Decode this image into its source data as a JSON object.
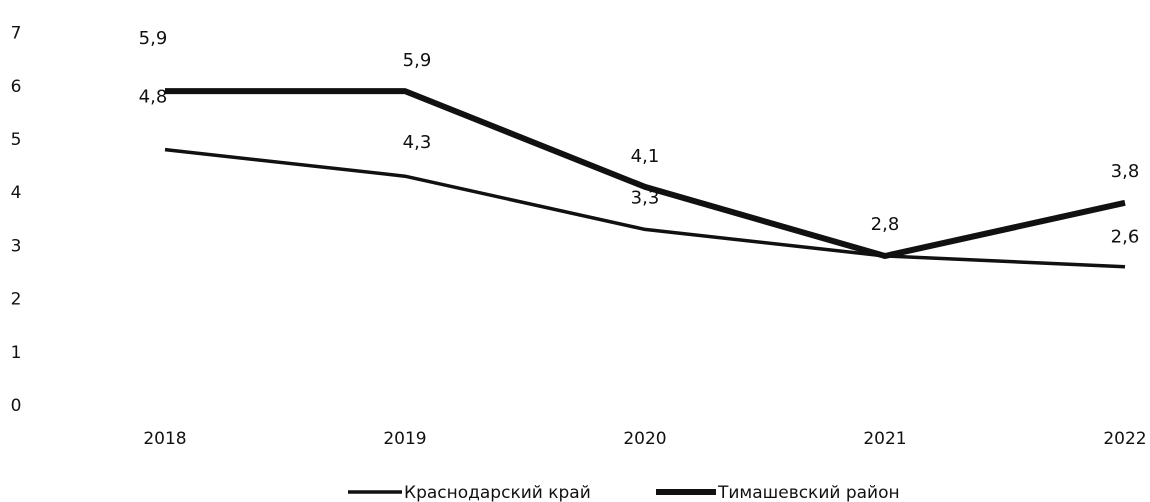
{
  "chart_data": {
    "type": "line",
    "categories": [
      "2018",
      "2019",
      "2020",
      "2021",
      "2022"
    ],
    "y_ticks": [
      "0",
      "1",
      "2",
      "3",
      "4",
      "5",
      "6",
      "7"
    ],
    "ylim": [
      0,
      7
    ],
    "grid": false,
    "legend_position": "bottom",
    "series": [
      {
        "name": "Краснодарский край",
        "values": [
          4.8,
          4.3,
          3.3,
          2.8,
          2.6
        ],
        "labels": [
          "4,8",
          "4,3",
          "3,3",
          "2,8",
          "2,6"
        ],
        "color": "#111111",
        "style": "thin"
      },
      {
        "name": "Тимашевский район",
        "values": [
          5.9,
          5.9,
          4.1,
          2.8,
          3.8
        ],
        "labels": [
          "5,9",
          "5,9",
          "4,1",
          "",
          "3,8"
        ],
        "color": "#111111",
        "style": "thick"
      }
    ]
  }
}
